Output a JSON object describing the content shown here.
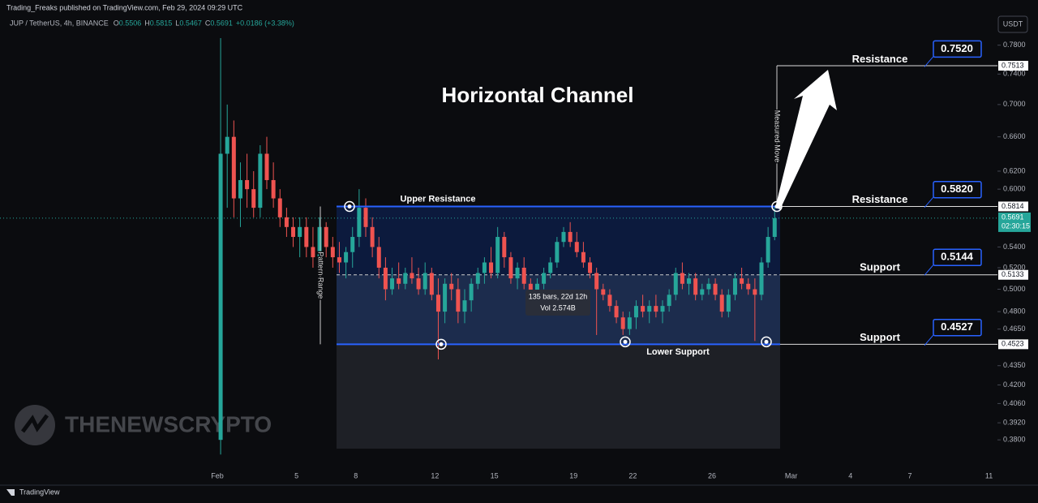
{
  "chart_data": {
    "type": "candlestick",
    "header": "Trading_Freaks published on TradingView.com, Feb 29, 2024 09:29 UTC",
    "symbol": "JUP / TetherUS, 4h, BINANCE",
    "legend_items": [
      {
        "key": "O",
        "value": "0.5506"
      },
      {
        "key": "H",
        "value": "0.5815"
      },
      {
        "key": "L",
        "value": "0.5467"
      },
      {
        "key": "C",
        "value": "0.5691"
      }
    ],
    "change": "+0.0186 (+3.38%)",
    "currency": "USDT",
    "title": "Horizontal Channel",
    "annotations": {
      "upper": "Upper Resistance",
      "lower": "Lower Support",
      "range": "Pattern Range",
      "move": "Measured Move",
      "bars": "135 bars, 22d 12h",
      "volume": "Vol 2.574B"
    },
    "watermark": "THENEWSCRYPTO",
    "footer": "TradingView",
    "countdown": "02:30:15",
    "up_color": "#26a69a",
    "down_color": "#ef5350",
    "log_scale": true,
    "ylim": [
      0.362,
      0.832
    ],
    "yticks": [
      {
        "value": 0.78,
        "label": "0.7800"
      },
      {
        "value": 0.74,
        "label": "0.7400"
      },
      {
        "value": 0.7,
        "label": "0.7000"
      },
      {
        "value": 0.66,
        "label": "0.6600"
      },
      {
        "value": 0.62,
        "label": "0.6200"
      },
      {
        "value": 0.6,
        "label": "0.6000"
      },
      {
        "value": 0.54,
        "label": "0.5400"
      },
      {
        "value": 0.52,
        "label": "0.5200"
      },
      {
        "value": 0.5,
        "label": "0.5000"
      },
      {
        "value": 0.48,
        "label": "0.4800"
      },
      {
        "value": 0.465,
        "label": "0.4650"
      },
      {
        "value": 0.435,
        "label": "0.4350"
      },
      {
        "value": 0.42,
        "label": "0.4200"
      },
      {
        "value": 0.406,
        "label": "0.4060"
      },
      {
        "value": 0.392,
        "label": "0.3920"
      },
      {
        "value": 0.38,
        "label": "0.3800"
      }
    ],
    "xticks": [
      {
        "value": "02-01",
        "label": "Feb"
      },
      {
        "value": "02-05",
        "label": "5"
      },
      {
        "value": "02-08",
        "label": "8"
      },
      {
        "value": "02-12",
        "label": "12"
      },
      {
        "value": "02-15",
        "label": "15"
      },
      {
        "value": "02-19",
        "label": "19"
      },
      {
        "value": "02-22",
        "label": "22"
      },
      {
        "value": "02-26",
        "label": "26"
      },
      {
        "value": "03-01",
        "label": "Mar"
      },
      {
        "value": "03-04",
        "label": "4"
      },
      {
        "value": "03-07",
        "label": "7"
      },
      {
        "value": "03-11",
        "label": "11"
      }
    ],
    "price_markers": [
      {
        "value": 0.7513,
        "label": "0.7513"
      },
      {
        "value": 0.5814,
        "label": "0.5814"
      },
      {
        "value": 0.5133,
        "label": "0.5133"
      },
      {
        "value": 0.4523,
        "label": "0.4523"
      }
    ],
    "last_price": {
      "value": 0.5691,
      "label": "0.5691"
    },
    "callouts": [
      {
        "name": "Resistance",
        "value": 0.752,
        "label": "0.7520"
      },
      {
        "name": "Resistance",
        "value": 0.582,
        "label": "0.5820"
      },
      {
        "name": "Support",
        "value": 0.5144,
        "label": "0.5144"
      },
      {
        "name": "Support",
        "value": 0.4527,
        "label": "0.4527"
      }
    ],
    "x": [
      "02-01 00:00",
      "02-01 08:00",
      "02-01 16:00",
      "02-02 00:00",
      "02-02 08:00",
      "02-02 16:00",
      "02-03 00:00",
      "02-03 08:00",
      "02-03 16:00",
      "02-04 00:00",
      "02-04 08:00",
      "02-04 16:00",
      "02-05 00:00",
      "02-05 08:00",
      "02-05 16:00",
      "02-06 00:00",
      "02-06 08:00",
      "02-06 16:00",
      "02-07 00:00",
      "02-07 08:00",
      "02-07 16:00",
      "02-08 00:00",
      "02-08 08:00",
      "02-08 16:00",
      "02-09 00:00",
      "02-09 08:00",
      "02-09 16:00",
      "02-10 00:00",
      "02-10 08:00",
      "02-10 16:00",
      "02-11 00:00",
      "02-11 08:00",
      "02-11 16:00",
      "02-12 00:00",
      "02-12 08:00",
      "02-12 16:00",
      "02-13 00:00",
      "02-13 08:00",
      "02-13 16:00",
      "02-14 00:00",
      "02-14 08:00",
      "02-14 16:00",
      "02-15 00:00",
      "02-15 08:00",
      "02-15 16:00",
      "02-16 00:00",
      "02-16 08:00",
      "02-16 16:00",
      "02-17 00:00",
      "02-17 08:00",
      "02-17 16:00",
      "02-18 00:00",
      "02-18 08:00",
      "02-18 16:00",
      "02-19 00:00",
      "02-19 08:00",
      "02-19 16:00",
      "02-20 00:00",
      "02-20 08:00",
      "02-20 16:00",
      "02-21 00:00",
      "02-21 08:00",
      "02-21 16:00",
      "02-22 00:00",
      "02-22 08:00",
      "02-22 16:00",
      "02-23 00:00",
      "02-23 08:00",
      "02-23 16:00",
      "02-24 00:00",
      "02-24 08:00",
      "02-24 16:00",
      "02-25 00:00",
      "02-25 08:00",
      "02-25 16:00",
      "02-26 00:00",
      "02-26 08:00",
      "02-26 16:00",
      "02-27 00:00",
      "02-27 08:00",
      "02-27 16:00",
      "02-28 00:00",
      "02-28 08:00",
      "02-28 16:00",
      "02-29 00:00"
    ],
    "ohlc": [
      [
        0.38,
        0.79,
        0.37,
        0.64
      ],
      [
        0.64,
        0.7,
        0.58,
        0.66
      ],
      [
        0.66,
        0.68,
        0.57,
        0.59
      ],
      [
        0.59,
        0.63,
        0.56,
        0.61
      ],
      [
        0.61,
        0.64,
        0.58,
        0.6
      ],
      [
        0.6,
        0.62,
        0.57,
        0.58
      ],
      [
        0.58,
        0.65,
        0.57,
        0.64
      ],
      [
        0.64,
        0.66,
        0.6,
        0.61
      ],
      [
        0.61,
        0.63,
        0.58,
        0.59
      ],
      [
        0.59,
        0.6,
        0.56,
        0.57
      ],
      [
        0.57,
        0.58,
        0.55,
        0.56
      ],
      [
        0.56,
        0.57,
        0.54,
        0.55
      ],
      [
        0.55,
        0.57,
        0.53,
        0.56
      ],
      [
        0.56,
        0.57,
        0.53,
        0.54
      ],
      [
        0.54,
        0.56,
        0.52,
        0.53
      ],
      [
        0.53,
        0.57,
        0.52,
        0.56
      ],
      [
        0.56,
        0.565,
        0.53,
        0.54
      ],
      [
        0.54,
        0.55,
        0.52,
        0.53
      ],
      [
        0.53,
        0.545,
        0.515,
        0.525
      ],
      [
        0.525,
        0.54,
        0.51,
        0.535
      ],
      [
        0.535,
        0.56,
        0.52,
        0.55
      ],
      [
        0.55,
        0.6,
        0.54,
        0.58
      ],
      [
        0.58,
        0.59,
        0.55,
        0.56
      ],
      [
        0.56,
        0.57,
        0.53,
        0.54
      ],
      [
        0.54,
        0.55,
        0.51,
        0.52
      ],
      [
        0.52,
        0.53,
        0.49,
        0.5
      ],
      [
        0.5,
        0.52,
        0.495,
        0.51
      ],
      [
        0.51,
        0.525,
        0.5,
        0.505
      ],
      [
        0.505,
        0.52,
        0.5,
        0.515
      ],
      [
        0.515,
        0.53,
        0.505,
        0.51
      ],
      [
        0.51,
        0.52,
        0.495,
        0.5
      ],
      [
        0.5,
        0.525,
        0.495,
        0.515
      ],
      [
        0.515,
        0.52,
        0.49,
        0.495
      ],
      [
        0.495,
        0.51,
        0.44,
        0.48
      ],
      [
        0.48,
        0.51,
        0.47,
        0.505
      ],
      [
        0.505,
        0.515,
        0.49,
        0.5
      ],
      [
        0.5,
        0.51,
        0.47,
        0.48
      ],
      [
        0.48,
        0.5,
        0.47,
        0.49
      ],
      [
        0.49,
        0.51,
        0.48,
        0.505
      ],
      [
        0.505,
        0.52,
        0.5,
        0.515
      ],
      [
        0.515,
        0.53,
        0.505,
        0.525
      ],
      [
        0.525,
        0.54,
        0.51,
        0.515
      ],
      [
        0.515,
        0.56,
        0.51,
        0.55
      ],
      [
        0.55,
        0.555,
        0.52,
        0.53
      ],
      [
        0.53,
        0.535,
        0.505,
        0.51
      ],
      [
        0.51,
        0.525,
        0.5,
        0.52
      ],
      [
        0.52,
        0.53,
        0.5,
        0.505
      ],
      [
        0.505,
        0.51,
        0.49,
        0.495
      ],
      [
        0.495,
        0.51,
        0.49,
        0.505
      ],
      [
        0.505,
        0.52,
        0.5,
        0.515
      ],
      [
        0.515,
        0.53,
        0.51,
        0.525
      ],
      [
        0.525,
        0.55,
        0.52,
        0.545
      ],
      [
        0.545,
        0.56,
        0.54,
        0.555
      ],
      [
        0.555,
        0.565,
        0.54,
        0.545
      ],
      [
        0.545,
        0.555,
        0.53,
        0.535
      ],
      [
        0.535,
        0.545,
        0.52,
        0.525
      ],
      [
        0.525,
        0.53,
        0.51,
        0.515
      ],
      [
        0.515,
        0.52,
        0.46,
        0.5
      ],
      [
        0.5,
        0.505,
        0.49,
        0.495
      ],
      [
        0.495,
        0.5,
        0.48,
        0.485
      ],
      [
        0.485,
        0.49,
        0.47,
        0.475
      ],
      [
        0.475,
        0.48,
        0.46,
        0.465
      ],
      [
        0.465,
        0.48,
        0.46,
        0.475
      ],
      [
        0.475,
        0.49,
        0.465,
        0.485
      ],
      [
        0.485,
        0.495,
        0.475,
        0.48
      ],
      [
        0.48,
        0.49,
        0.47,
        0.485
      ],
      [
        0.485,
        0.495,
        0.475,
        0.48
      ],
      [
        0.48,
        0.49,
        0.47,
        0.485
      ],
      [
        0.485,
        0.5,
        0.48,
        0.495
      ],
      [
        0.495,
        0.52,
        0.49,
        0.515
      ],
      [
        0.515,
        0.525,
        0.5,
        0.505
      ],
      [
        0.505,
        0.515,
        0.495,
        0.51
      ],
      [
        0.51,
        0.515,
        0.49,
        0.495
      ],
      [
        0.495,
        0.505,
        0.49,
        0.5
      ],
      [
        0.5,
        0.51,
        0.495,
        0.505
      ],
      [
        0.505,
        0.51,
        0.49,
        0.495
      ],
      [
        0.495,
        0.5,
        0.475,
        0.48
      ],
      [
        0.48,
        0.5,
        0.475,
        0.495
      ],
      [
        0.495,
        0.515,
        0.49,
        0.51
      ],
      [
        0.51,
        0.52,
        0.5,
        0.505
      ],
      [
        0.505,
        0.51,
        0.495,
        0.5
      ],
      [
        0.5,
        0.51,
        0.455,
        0.495
      ],
      [
        0.495,
        0.53,
        0.49,
        0.525
      ],
      [
        0.525,
        0.56,
        0.52,
        0.55
      ],
      [
        0.55,
        0.5815,
        0.5467,
        0.5691
      ]
    ]
  }
}
